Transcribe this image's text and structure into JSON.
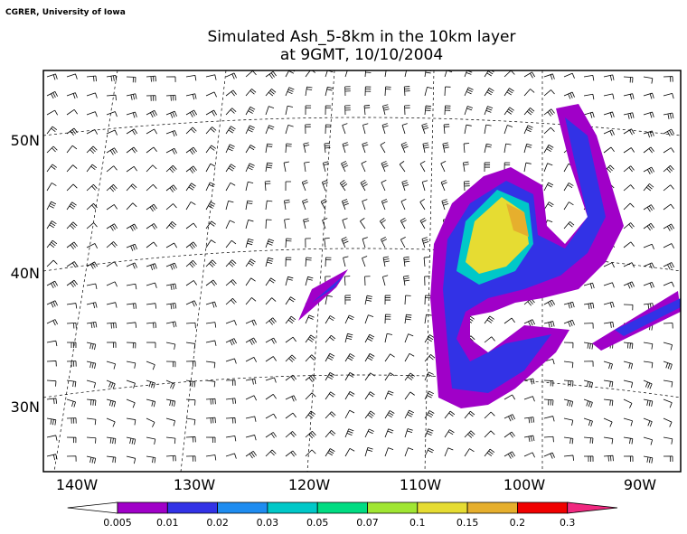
{
  "credit": "CGRER, University of Iowa",
  "title": [
    "Simulated Ash_5-8km in the 10km layer",
    "at 9GMT, 10/10/2004"
  ],
  "lat_labels": [
    "50N",
    "40N",
    "30N"
  ],
  "lon_labels": [
    "140W",
    "130W",
    "120W",
    "110W",
    "100W",
    "90W"
  ],
  "colorbar": {
    "levels": [
      0.005,
      0.01,
      0.02,
      0.03,
      0.05,
      0.07,
      0.1,
      0.15,
      0.2,
      0.3
    ],
    "colors": [
      "#ffffff",
      "#a000c8",
      "#3232e6",
      "#1e8cf0",
      "#00c8c8",
      "#00dc82",
      "#a0e632",
      "#e6dc32",
      "#e6af2d",
      "#f00000",
      "#f0287f"
    ]
  }
}
